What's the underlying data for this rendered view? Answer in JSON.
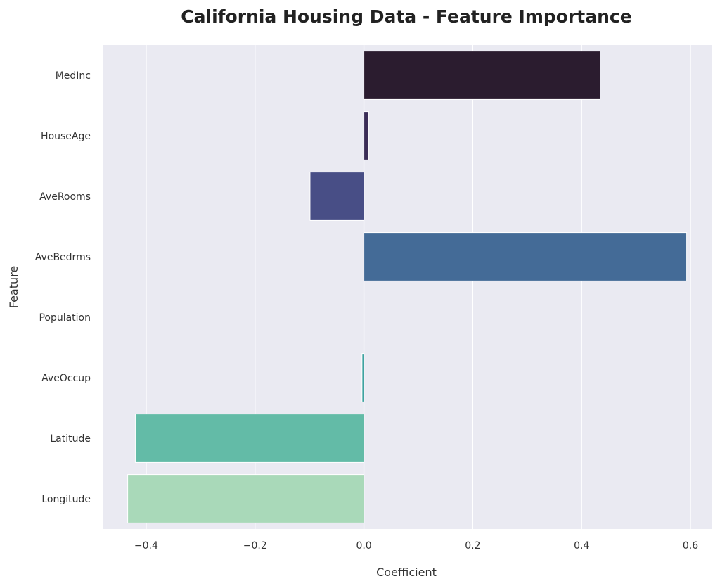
{
  "chart_data": {
    "type": "bar",
    "orientation": "horizontal",
    "title": "California Housing Data - Feature Importance",
    "xlabel": "Coefficient",
    "ylabel": "Feature",
    "categories": [
      "MedInc",
      "HouseAge",
      "AveRooms",
      "AveBedrms",
      "Population",
      "AveOccup",
      "Latitude",
      "Longitude"
    ],
    "values": [
      0.434,
      0.009,
      -0.099,
      0.593,
      -8e-06,
      -0.0035,
      -0.42,
      -0.434
    ],
    "colors": [
      "#2b1c2f",
      "#3b2d57",
      "#484e86",
      "#446b97",
      "#3f8b9e",
      "#3ea3a0",
      "#63bba7",
      "#a9d9b9"
    ],
    "xlim": [
      -0.48,
      0.64
    ],
    "xticks": [
      -0.4,
      -0.2,
      0.0,
      0.2,
      0.4,
      0.6
    ],
    "xtick_labels": [
      "−0.4",
      "−0.2",
      "0.0",
      "0.2",
      "0.4",
      "0.6"
    ],
    "grid": true,
    "background": "#eaeaf2"
  }
}
